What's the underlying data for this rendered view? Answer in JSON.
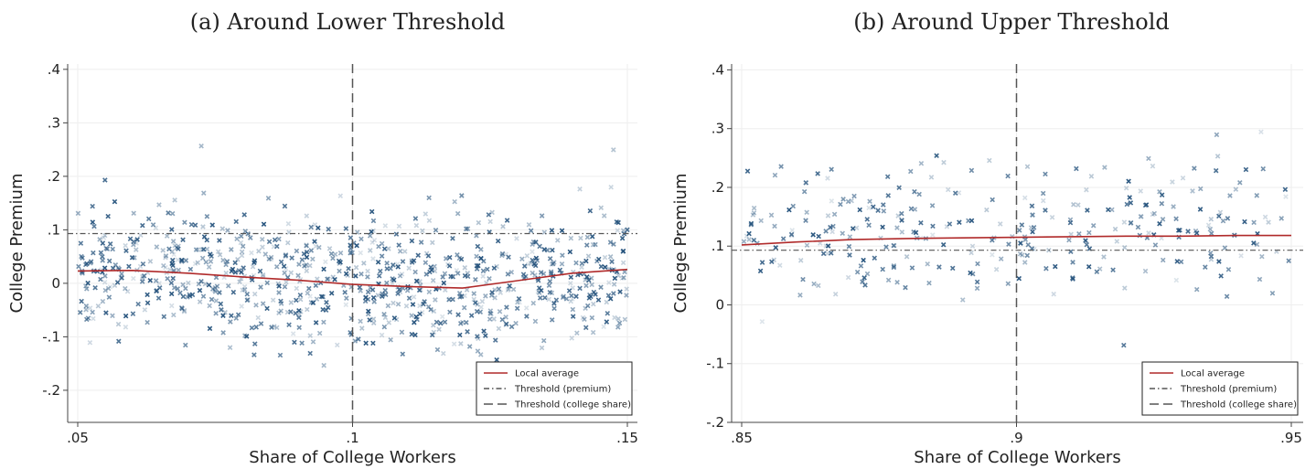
{
  "chart_data": [
    {
      "type": "scatter",
      "title": "(a) Around Lower Threshold",
      "xlabel": "Share of College Workers",
      "ylabel": "College Premium",
      "xlim": [
        0.05,
        0.15
      ],
      "ylim": [
        -0.26,
        0.41
      ],
      "xticks": [
        ".05",
        ".1",
        ".15"
      ],
      "xtick_values": [
        0.05,
        0.1,
        0.15
      ],
      "yticks": [
        "-.2",
        "-.1",
        "0",
        ".1",
        ".2",
        ".3",
        ".4"
      ],
      "ytick_values": [
        -0.2,
        -0.1,
        0,
        0.1,
        0.2,
        0.3,
        0.4
      ],
      "grid": true,
      "threshold_premium": 0.093,
      "threshold_college_share": 0.1,
      "legend": {
        "placement": "bottom-right",
        "entries": [
          "Local average",
          "Threshold (premium)",
          "Threshold (college share)"
        ]
      },
      "local_average": {
        "x": [
          0.05,
          0.06,
          0.07,
          0.08,
          0.09,
          0.1,
          0.11,
          0.12,
          0.13,
          0.14,
          0.15
        ],
        "y": [
          0.023,
          0.024,
          0.019,
          0.012,
          0.006,
          -0.002,
          -0.006,
          -0.009,
          0.005,
          0.019,
          0.026
        ]
      },
      "scatter": {
        "n": 900,
        "note_x_range": [
          0.05,
          0.15
        ],
        "mean_premium": 0.01,
        "spread": 0.06
      },
      "colors": {
        "points": "#1f4e79",
        "local_average": "#b02a2a",
        "threshold": "#555555"
      }
    },
    {
      "type": "scatter",
      "title": "(b) Around Upper Threshold",
      "xlabel": "Share of College Workers",
      "ylabel": "College Premium",
      "xlim": [
        0.85,
        0.95
      ],
      "ylim": [
        -0.2,
        0.41
      ],
      "xticks": [
        ".85",
        ".9",
        ".95"
      ],
      "xtick_values": [
        0.85,
        0.9,
        0.95
      ],
      "yticks": [
        "-.2",
        "-.1",
        "0",
        ".1",
        ".2",
        ".3",
        ".4"
      ],
      "ytick_values": [
        -0.2,
        -0.1,
        0,
        0.1,
        0.2,
        0.3,
        0.4
      ],
      "grid": true,
      "threshold_premium": 0.093,
      "threshold_college_share": 0.9,
      "legend": {
        "placement": "bottom-right",
        "entries": [
          "Local average",
          "Threshold (premium)",
          "Threshold (college share)"
        ]
      },
      "local_average": {
        "x": [
          0.85,
          0.86,
          0.87,
          0.88,
          0.89,
          0.9,
          0.91,
          0.92,
          0.93,
          0.94,
          0.95
        ],
        "y": [
          0.102,
          0.107,
          0.111,
          0.113,
          0.114,
          0.115,
          0.116,
          0.117,
          0.117,
          0.118,
          0.118
        ]
      },
      "scatter": {
        "n": 320,
        "note_x_range": [
          0.85,
          0.95
        ],
        "mean_premium": 0.125,
        "spread": 0.055
      },
      "colors": {
        "points": "#1f4e79",
        "local_average": "#b02a2a",
        "threshold": "#555555"
      }
    }
  ]
}
